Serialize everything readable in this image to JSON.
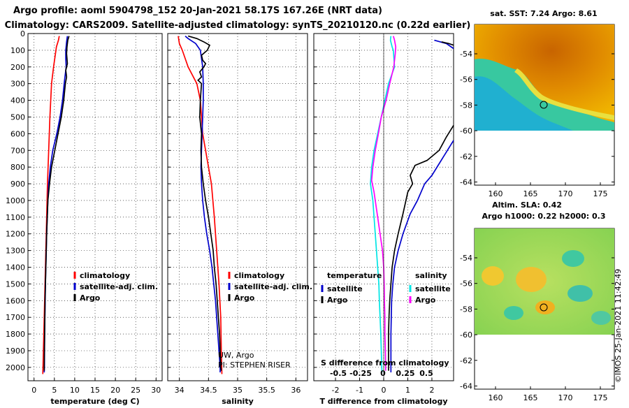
{
  "title_line1": "Argo profile: aoml 5904798_152 20-Jan-2021 58.17S 167.26E (NRT data)",
  "title_line2": "Climatology: CARS2009. Satellite-adjusted climatology: synTS_20210120.nc (0.22d earlier)",
  "colors": {
    "climatology": "#ff0000",
    "satellite": "#0000cc",
    "argo": "#000000",
    "salinity_sat": "#00e5e5",
    "salinity_argo": "#ff00ff"
  },
  "chart_data": [
    {
      "type": "line",
      "xlabel": "temperature (deg C)",
      "xticks": [
        "0",
        "5",
        "10",
        "15",
        "20",
        "25",
        "30"
      ],
      "xlim": [
        -1.5,
        31.5
      ],
      "ylim": [
        2080,
        0
      ],
      "yticks": [
        "0",
        "100",
        "200",
        "300",
        "400",
        "500",
        "600",
        "700",
        "800",
        "900",
        "1000",
        "1100",
        "1200",
        "1300",
        "1400",
        "1500",
        "1600",
        "1700",
        "1800",
        "1900",
        "2000"
      ],
      "legend": [
        "climatology",
        "satellite-adj. clim.",
        "Argo"
      ],
      "series": [
        {
          "name": "climatology",
          "color": "#ff0000",
          "points": [
            [
              6.2,
              15
            ],
            [
              6.0,
              40
            ],
            [
              5.5,
              80
            ],
            [
              4.8,
              200
            ],
            [
              4.3,
              300
            ],
            [
              3.9,
              500
            ],
            [
              3.6,
              700
            ],
            [
              3.3,
              900
            ],
            [
              3.0,
              1200
            ],
            [
              2.7,
              1500
            ],
            [
              2.4,
              1800
            ],
            [
              2.2,
              2000
            ],
            [
              2.15,
              2040
            ]
          ]
        },
        {
          "name": "satellite-adj. clim.",
          "color": "#0000cc",
          "points": [
            [
              8.2,
              15
            ],
            [
              8.0,
              50
            ],
            [
              7.8,
              100
            ],
            [
              7.8,
              150
            ],
            [
              7.9,
              200
            ],
            [
              7.5,
              280
            ],
            [
              7.0,
              400
            ],
            [
              6.4,
              500
            ],
            [
              5.6,
              600
            ],
            [
              4.6,
              700
            ],
            [
              4.0,
              800
            ],
            [
              3.6,
              900
            ],
            [
              3.4,
              1000
            ],
            [
              3.1,
              1200
            ],
            [
              2.9,
              1400
            ],
            [
              2.8,
              1500
            ],
            [
              2.6,
              1800
            ],
            [
              2.55,
              2000
            ],
            [
              2.5,
              2030
            ]
          ]
        },
        {
          "name": "Argo",
          "color": "#000000",
          "points": [
            [
              8.6,
              15
            ],
            [
              8.3,
              40
            ],
            [
              8.1,
              80
            ],
            [
              8.0,
              120
            ],
            [
              8.2,
              180
            ],
            [
              7.8,
              220
            ],
            [
              8.0,
              260
            ],
            [
              7.7,
              300
            ],
            [
              7.3,
              400
            ],
            [
              6.7,
              500
            ],
            [
              5.9,
              600
            ],
            [
              5.1,
              700
            ],
            [
              4.3,
              800
            ],
            [
              3.8,
              900
            ],
            [
              3.4,
              1000
            ],
            [
              3.1,
              1200
            ],
            [
              2.9,
              1400
            ],
            [
              2.7,
              1600
            ],
            [
              2.6,
              1800
            ],
            [
              2.5,
              2000
            ],
            [
              2.5,
              2020
            ]
          ]
        }
      ]
    },
    {
      "type": "line",
      "xlabel": "salinity",
      "xticks": [
        "34",
        "34.5",
        "35",
        "35.5",
        "36"
      ],
      "xtick_values": [
        34,
        34.5,
        35,
        35.5,
        36
      ],
      "xlim": [
        33.8,
        36.2
      ],
      "ylim": [
        2080,
        0
      ],
      "legend": [
        "climatology",
        "satellite-adj. clim.",
        "Argo"
      ],
      "annotation_lines": [
        "UW, Argo",
        "PI: STEPHEN RISER"
      ],
      "series": [
        {
          "name": "climatology",
          "color": "#ff0000",
          "points": [
            [
              33.98,
              15
            ],
            [
              34.0,
              60
            ],
            [
              34.05,
              100
            ],
            [
              34.15,
              200
            ],
            [
              34.3,
              300
            ],
            [
              34.36,
              400
            ],
            [
              34.38,
              500
            ],
            [
              34.4,
              600
            ],
            [
              34.45,
              700
            ],
            [
              34.5,
              800
            ],
            [
              34.55,
              900
            ],
            [
              34.6,
              1100
            ],
            [
              34.64,
              1300
            ],
            [
              34.68,
              1500
            ],
            [
              34.71,
              1700
            ],
            [
              34.72,
              1900
            ],
            [
              34.73,
              2040
            ]
          ]
        },
        {
          "name": "satellite-adj. clim.",
          "color": "#0000cc",
          "points": [
            [
              34.1,
              15
            ],
            [
              34.15,
              30
            ],
            [
              34.28,
              60
            ],
            [
              34.36,
              100
            ],
            [
              34.38,
              150
            ],
            [
              34.4,
              200
            ],
            [
              34.41,
              300
            ],
            [
              34.41,
              400
            ],
            [
              34.4,
              500
            ],
            [
              34.39,
              600
            ],
            [
              34.38,
              700
            ],
            [
              34.37,
              800
            ],
            [
              34.38,
              900
            ],
            [
              34.4,
              1000
            ],
            [
              34.43,
              1100
            ],
            [
              34.47,
              1200
            ],
            [
              34.52,
              1300
            ],
            [
              34.56,
              1400
            ],
            [
              34.59,
              1500
            ],
            [
              34.62,
              1600
            ],
            [
              34.64,
              1700
            ],
            [
              34.66,
              1800
            ],
            [
              34.68,
              1900
            ],
            [
              34.7,
              2000
            ],
            [
              34.7,
              2030
            ]
          ]
        },
        {
          "name": "Argo",
          "color": "#000000",
          "points": [
            [
              34.15,
              15
            ],
            [
              34.3,
              30
            ],
            [
              34.42,
              50
            ],
            [
              34.52,
              70
            ],
            [
              34.48,
              100
            ],
            [
              34.38,
              130
            ],
            [
              34.4,
              160
            ],
            [
              34.45,
              180
            ],
            [
              34.42,
              200
            ],
            [
              34.35,
              230
            ],
            [
              34.38,
              260
            ],
            [
              34.32,
              280
            ],
            [
              34.38,
              300
            ],
            [
              34.36,
              400
            ],
            [
              34.35,
              500
            ],
            [
              34.38,
              600
            ],
            [
              34.37,
              700
            ],
            [
              34.38,
              800
            ],
            [
              34.41,
              900
            ],
            [
              34.45,
              1000
            ],
            [
              34.5,
              1100
            ],
            [
              34.54,
              1200
            ],
            [
              34.58,
              1300
            ],
            [
              34.6,
              1400
            ],
            [
              34.63,
              1500
            ],
            [
              34.65,
              1600
            ],
            [
              34.67,
              1700
            ],
            [
              34.69,
              1800
            ],
            [
              34.7,
              1900
            ],
            [
              34.71,
              2000
            ],
            [
              34.72,
              2020
            ]
          ]
        }
      ]
    },
    {
      "type": "line",
      "xlabel": "T difference from climatology",
      "xticks": [
        "-2",
        "-1",
        "0",
        "1",
        "2"
      ],
      "xlim": [
        -2.9,
        2.9
      ],
      "inner_label": "S difference from climatology",
      "inner_xticks": [
        "-0.5",
        "-0.25",
        "0",
        "0.25",
        "0.5"
      ],
      "ylim": [
        2080,
        0
      ],
      "legend_headers": [
        "temperature",
        "salinity"
      ],
      "legend_temperature": [
        "satellite",
        "Argo"
      ],
      "legend_salinity": [
        "satellite",
        "Argo"
      ],
      "series": [
        {
          "name": "T satellite",
          "color": "#0000cc",
          "points": [
            [
              2.1,
              40
            ],
            [
              2.6,
              60
            ],
            [
              2.9,
              90
            ]
          ]
        },
        {
          "name": "T Argo",
          "color": "#000000",
          "points": [
            [
              2.4,
              50
            ],
            [
              2.7,
              60
            ],
            [
              2.9,
              70
            ]
          ]
        },
        {
          "name": "T Argo deep",
          "color": "#000000",
          "points": [
            [
              2.9,
              550
            ],
            [
              2.6,
              620
            ],
            [
              2.3,
              700
            ],
            [
              1.8,
              760
            ],
            [
              1.3,
              790
            ],
            [
              1.1,
              850
            ],
            [
              1.2,
              900
            ],
            [
              1.0,
              950
            ],
            [
              0.8,
              1080
            ],
            [
              0.6,
              1200
            ],
            [
              0.45,
              1300
            ],
            [
              0.35,
              1400
            ],
            [
              0.3,
              1500
            ],
            [
              0.25,
              1600
            ],
            [
              0.22,
              1700
            ],
            [
              0.2,
              1800
            ],
            [
              0.2,
              1900
            ],
            [
              0.2,
              2020
            ]
          ]
        },
        {
          "name": "T satellite deep",
          "color": "#0000cc",
          "points": [
            [
              2.9,
              640
            ],
            [
              2.6,
              710
            ],
            [
              2.3,
              780
            ],
            [
              2.0,
              850
            ],
            [
              1.7,
              900
            ],
            [
              1.4,
              1000
            ],
            [
              1.1,
              1080
            ],
            [
              0.8,
              1200
            ],
            [
              0.6,
              1300
            ],
            [
              0.45,
              1400
            ],
            [
              0.38,
              1500
            ],
            [
              0.33,
              1600
            ],
            [
              0.3,
              1800
            ],
            [
              0.3,
              2000
            ],
            [
              0.3,
              2030
            ]
          ]
        },
        {
          "name": "S satellite",
          "color": "#00e5e5",
          "points": [
            [
              0.3,
              15
            ],
            [
              0.28,
              40
            ],
            [
              0.35,
              80
            ],
            [
              0.4,
              100
            ],
            [
              0.45,
              200
            ],
            [
              0.2,
              300
            ],
            [
              0.05,
              400
            ],
            [
              -0.1,
              500
            ],
            [
              -0.25,
              600
            ],
            [
              -0.4,
              700
            ],
            [
              -0.5,
              800
            ],
            [
              -0.55,
              900
            ],
            [
              -0.45,
              1000
            ],
            [
              -0.4,
              1100
            ],
            [
              -0.35,
              1200
            ],
            [
              -0.3,
              1300
            ],
            [
              -0.25,
              1400
            ],
            [
              -0.2,
              1500
            ],
            [
              -0.18,
              1600
            ],
            [
              -0.15,
              1700
            ],
            [
              -0.12,
              1800
            ],
            [
              -0.1,
              1900
            ],
            [
              -0.08,
              2000
            ],
            [
              -0.07,
              2030
            ]
          ]
        },
        {
          "name": "S Argo",
          "color": "#ff00ff",
          "points": [
            [
              0.4,
              15
            ],
            [
              0.45,
              40
            ],
            [
              0.5,
              80
            ],
            [
              0.48,
              120
            ],
            [
              0.42,
              200
            ],
            [
              0.25,
              300
            ],
            [
              0.1,
              400
            ],
            [
              -0.1,
              500
            ],
            [
              -0.22,
              600
            ],
            [
              -0.35,
              700
            ],
            [
              -0.45,
              800
            ],
            [
              -0.5,
              880
            ],
            [
              -0.4,
              950
            ],
            [
              -0.3,
              1050
            ],
            [
              -0.15,
              1200
            ],
            [
              -0.05,
              1300
            ],
            [
              0.0,
              1400
            ],
            [
              0.02,
              1500
            ],
            [
              0.03,
              1600
            ],
            [
              0.05,
              1700
            ],
            [
              0.05,
              1800
            ],
            [
              0.07,
              1900
            ],
            [
              0.08,
              2000
            ],
            [
              0.08,
              2020
            ]
          ]
        }
      ]
    }
  ],
  "map_sst": {
    "title": "sat. SST: 7.24 Argo: 8.61",
    "yticks": [
      "-54",
      "-56",
      "-58",
      "-60",
      "-62",
      "-64"
    ],
    "xticks": [
      "160",
      "165",
      "170",
      "175"
    ]
  },
  "map_sla": {
    "title_line1": "Altim. SLA: 0.42",
    "title_line2": "Argo h1000: 0.22 h2000: 0.3",
    "yticks": [
      "-54",
      "-56",
      "-58",
      "-60",
      "-62",
      "-64"
    ],
    "xticks": [
      "160",
      "165",
      "170",
      "175"
    ]
  },
  "footer_credit": "©IMOS 25-Jan-2021 11:42:49"
}
